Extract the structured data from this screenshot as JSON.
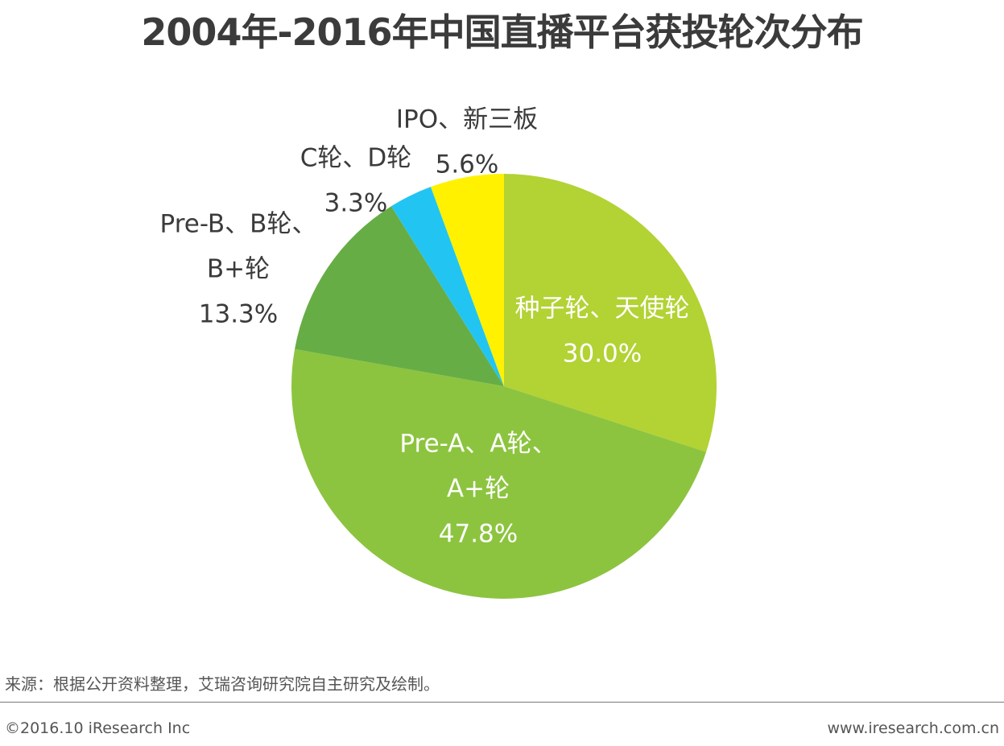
{
  "title": "2004年-2016年中国直播平台获投轮次分布",
  "chart_data": {
    "type": "pie",
    "title": "2004年-2016年中国直播平台获投轮次分布",
    "start_angle_deg": 0,
    "direction": "clockwise",
    "slices": [
      {
        "label_lines": [
          "种子轮、天使轮"
        ],
        "value": 30.0,
        "value_label": "30.0%",
        "color": "#b3d234",
        "label_color": "#ffffff",
        "label_position": "inside"
      },
      {
        "label_lines": [
          "Pre-A、A轮、",
          "A+轮"
        ],
        "value": 47.8,
        "value_label": "47.8%",
        "color": "#8cc43f",
        "label_color": "#ffffff",
        "label_position": "inside"
      },
      {
        "label_lines": [
          "Pre-B、B轮、",
          "B+轮"
        ],
        "value": 13.3,
        "value_label": "13.3%",
        "color": "#67ad45",
        "label_color": "#3b3b3b",
        "label_position": "outside"
      },
      {
        "label_lines": [
          "C轮、D轮"
        ],
        "value": 3.3,
        "value_label": "3.3%",
        "color": "#22c5f2",
        "label_color": "#3b3b3b",
        "label_position": "outside"
      },
      {
        "label_lines": [
          "IPO、新三板"
        ],
        "value": 5.6,
        "value_label": "5.6%",
        "color": "#fff100",
        "label_color": "#3b3b3b",
        "label_position": "outside"
      }
    ]
  },
  "footer": {
    "source": "来源：根据公开资料整理，艾瑞咨询研究院自主研究及绘制。",
    "copyright": "©2016.10 iResearch Inc",
    "website": "www.iresearch.com.cn"
  }
}
